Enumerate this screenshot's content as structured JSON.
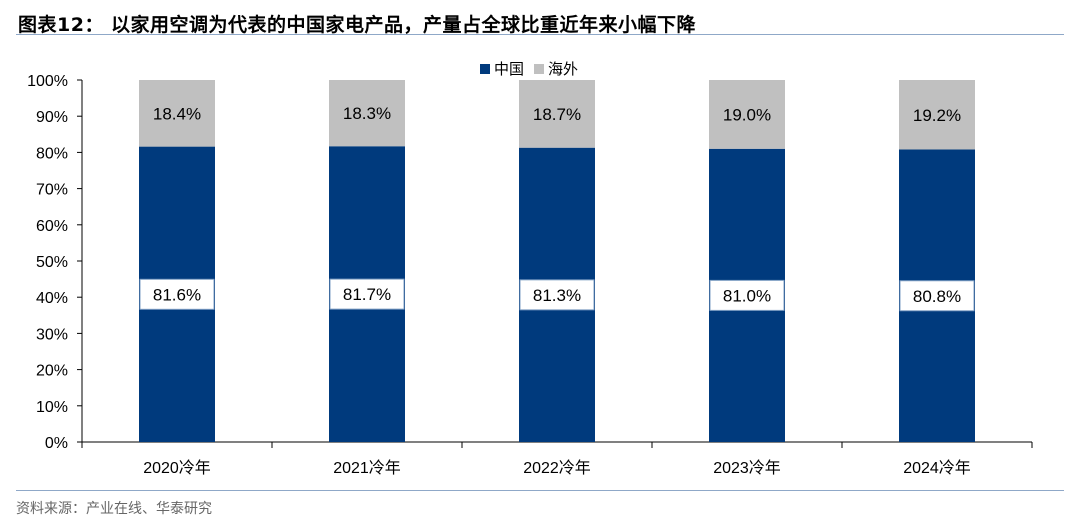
{
  "header": {
    "title": "图表12：  以家用空调为代表的中国家电产品，产量占全球比重近年来小幅下降"
  },
  "footer": {
    "source": "资料来源：产业在线、华泰研究"
  },
  "colors": {
    "china": "#003a7d",
    "overseas": "#c0c0c0",
    "rule": "#8fa8c8"
  },
  "chart_data": {
    "type": "bar",
    "stacked": true,
    "categories": [
      "2020冷年",
      "2021冷年",
      "2022冷年",
      "2023冷年",
      "2024冷年"
    ],
    "series": [
      {
        "name": "中国",
        "values": [
          81.6,
          81.7,
          81.3,
          81.0,
          80.8
        ],
        "labels": [
          "81.6%",
          "81.7%",
          "81.3%",
          "81.0%",
          "80.8%"
        ]
      },
      {
        "name": "海外",
        "values": [
          18.4,
          18.3,
          18.7,
          19.0,
          19.2
        ],
        "labels": [
          "18.4%",
          "18.3%",
          "18.7%",
          "19.0%",
          "19.2%"
        ]
      }
    ],
    "ylim": [
      0,
      100
    ],
    "yticks": [
      "0%",
      "10%",
      "20%",
      "30%",
      "40%",
      "50%",
      "60%",
      "70%",
      "80%",
      "90%",
      "100%"
    ],
    "legend_position": "top-center",
    "grid": false
  }
}
